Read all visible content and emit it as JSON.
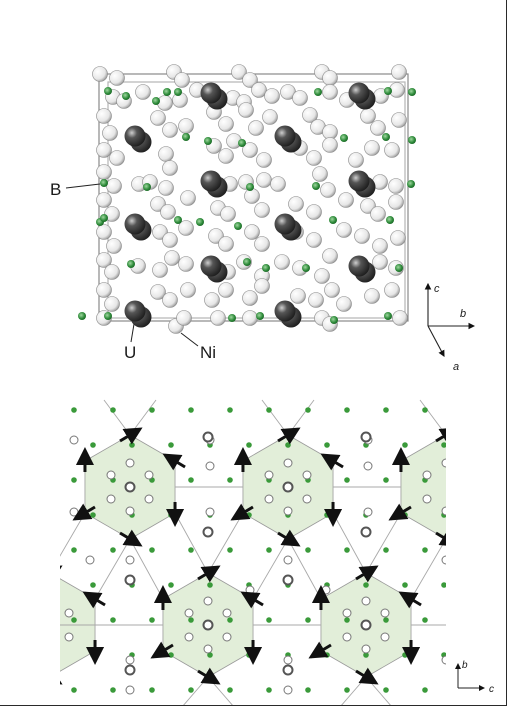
{
  "structure_panel": {
    "labels": {
      "boron": "B",
      "uranium": "U",
      "nickel": "Ni"
    },
    "axes": {
      "c": "c",
      "b": "b",
      "a": "a"
    }
  },
  "moment_panel": {
    "axes": {
      "b": "b",
      "c": "c"
    }
  },
  "colors": {
    "boron": "#2e8b3a",
    "uranium": "#3c3c3c",
    "nickel": "#f2f2f2",
    "hexagon_fill": "#e3efdb",
    "arrow": "#111111"
  }
}
